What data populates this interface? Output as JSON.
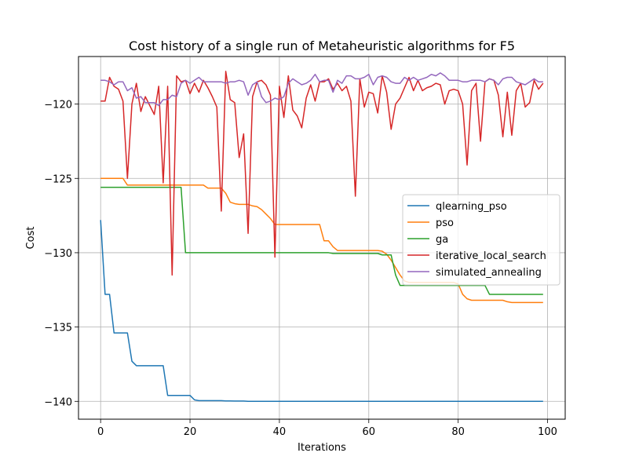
{
  "chart_data": {
    "type": "line",
    "title": "Cost history of a single run of Metaheuristic algorithms for F5",
    "xlabel": "Iterations",
    "ylabel": "Cost",
    "xlim": [
      -4.95,
      103.95
    ],
    "ylim": [
      -141.2,
      -116.8
    ],
    "xticks": [
      0,
      20,
      40,
      60,
      80,
      100
    ],
    "yticks": [
      -140,
      -135,
      -130,
      -125,
      -120
    ],
    "grid": true,
    "legend_position": "center-right",
    "series": [
      {
        "name": "qlearning_pso",
        "color": "#1f77b4",
        "x": [
          0,
          1,
          2,
          3,
          4,
          5,
          6,
          7,
          8,
          9,
          10,
          11,
          12,
          13,
          14,
          15,
          16,
          17,
          18,
          19,
          20,
          21,
          22,
          23,
          24,
          25,
          26,
          27,
          28,
          29,
          30,
          31,
          32,
          33,
          34,
          35,
          36,
          37,
          38,
          39,
          40,
          41,
          42,
          43,
          44,
          45,
          46,
          47,
          48,
          49,
          50,
          51,
          52,
          53,
          54,
          55,
          56,
          57,
          58,
          59,
          60,
          61,
          62,
          63,
          64,
          65,
          66,
          67,
          68,
          69,
          70,
          71,
          72,
          73,
          74,
          75,
          76,
          77,
          78,
          79,
          80,
          81,
          82,
          83,
          84,
          85,
          86,
          87,
          88,
          89,
          90,
          91,
          92,
          93,
          94,
          95,
          96,
          97,
          98,
          99
        ],
        "y": [
          -127.8,
          -132.8,
          -132.8,
          -135.4,
          -135.4,
          -135.4,
          -135.4,
          -137.3,
          -137.6,
          -137.6,
          -137.6,
          -137.6,
          -137.6,
          -137.6,
          -137.6,
          -139.6,
          -139.6,
          -139.6,
          -139.6,
          -139.6,
          -139.6,
          -139.9,
          -139.95,
          -139.95,
          -139.95,
          -139.95,
          -139.95,
          -139.95,
          -139.97,
          -139.97,
          -139.98,
          -139.98,
          -139.98,
          -140,
          -140,
          -140,
          -140,
          -140,
          -140,
          -140,
          -140,
          -140,
          -140,
          -140,
          -140,
          -140,
          -140,
          -140,
          -140,
          -140,
          -140,
          -140,
          -140,
          -140,
          -140,
          -140,
          -140,
          -140,
          -140,
          -140,
          -140,
          -140,
          -140,
          -140,
          -140,
          -140,
          -140,
          -140,
          -140,
          -140,
          -140,
          -140,
          -140,
          -140,
          -140,
          -140,
          -140,
          -140,
          -140,
          -140,
          -140,
          -140,
          -140,
          -140,
          -140,
          -140,
          -140,
          -140,
          -140,
          -140,
          -140,
          -140,
          -140,
          -140,
          -140,
          -140,
          -140,
          -140,
          -140,
          -140
        ]
      },
      {
        "name": "pso",
        "color": "#ff7f0e",
        "x": [
          0,
          1,
          2,
          3,
          4,
          5,
          6,
          7,
          8,
          9,
          10,
          11,
          12,
          13,
          14,
          15,
          16,
          17,
          18,
          19,
          20,
          21,
          22,
          23,
          24,
          25,
          26,
          27,
          28,
          29,
          30,
          31,
          32,
          33,
          34,
          35,
          36,
          37,
          38,
          39,
          40,
          41,
          42,
          43,
          44,
          45,
          46,
          47,
          48,
          49,
          50,
          51,
          52,
          53,
          54,
          55,
          56,
          57,
          58,
          59,
          60,
          61,
          62,
          63,
          64,
          65,
          66,
          67,
          68,
          69,
          70,
          71,
          72,
          73,
          74,
          75,
          76,
          77,
          78,
          79,
          80,
          81,
          82,
          83,
          84,
          85,
          86,
          87,
          88,
          89,
          90,
          91,
          92,
          93,
          94,
          95,
          96,
          97,
          98,
          99
        ],
        "y": [
          -125,
          -125,
          -125,
          -125,
          -125,
          -125,
          -125.45,
          -125.45,
          -125.45,
          -125.45,
          -125.45,
          -125.45,
          -125.45,
          -125.45,
          -125.45,
          -125.45,
          -125.45,
          -125.45,
          -125.45,
          -125.45,
          -125.45,
          -125.45,
          -125.45,
          -125.45,
          -125.65,
          -125.65,
          -125.65,
          -125.65,
          -126,
          -126.6,
          -126.7,
          -126.75,
          -126.75,
          -126.75,
          -126.85,
          -126.9,
          -127.1,
          -127.4,
          -127.7,
          -128.1,
          -128.1,
          -128.1,
          -128.1,
          -128.1,
          -128.1,
          -128.1,
          -128.1,
          -128.1,
          -128.1,
          -128.1,
          -129.2,
          -129.2,
          -129.6,
          -129.85,
          -129.85,
          -129.85,
          -129.85,
          -129.85,
          -129.85,
          -129.85,
          -129.85,
          -129.85,
          -129.85,
          -129.9,
          -130.1,
          -130.5,
          -131,
          -131.5,
          -131.9,
          -132,
          -132,
          -132,
          -132,
          -132,
          -132,
          -132,
          -132,
          -132,
          -132,
          -132,
          -132.1,
          -132.8,
          -133.1,
          -133.2,
          -133.2,
          -133.2,
          -133.2,
          -133.2,
          -133.2,
          -133.2,
          -133.2,
          -133.3,
          -133.35,
          -133.35,
          -133.35,
          -133.35,
          -133.35,
          -133.35,
          -133.35,
          -133.35
        ]
      },
      {
        "name": "ga",
        "color": "#2ca02c",
        "x": [
          0,
          1,
          2,
          3,
          4,
          5,
          6,
          7,
          8,
          9,
          10,
          11,
          12,
          13,
          14,
          15,
          16,
          17,
          18,
          19,
          20,
          21,
          22,
          23,
          24,
          25,
          26,
          27,
          28,
          29,
          30,
          31,
          32,
          33,
          34,
          35,
          36,
          37,
          38,
          39,
          40,
          41,
          42,
          43,
          44,
          45,
          46,
          47,
          48,
          49,
          50,
          51,
          52,
          53,
          54,
          55,
          56,
          57,
          58,
          59,
          60,
          61,
          62,
          63,
          64,
          65,
          66,
          67,
          68,
          69,
          70,
          71,
          72,
          73,
          74,
          75,
          76,
          77,
          78,
          79,
          80,
          81,
          82,
          83,
          84,
          85,
          86,
          87,
          88,
          89,
          90,
          91,
          92,
          93,
          94,
          95,
          96,
          97,
          98,
          99
        ],
        "y": [
          -125.6,
          -125.6,
          -125.6,
          -125.6,
          -125.6,
          -125.6,
          -125.6,
          -125.6,
          -125.6,
          -125.6,
          -125.6,
          -125.6,
          -125.6,
          -125.6,
          -125.6,
          -125.6,
          -125.6,
          -125.6,
          -125.6,
          -130,
          -130,
          -130,
          -130,
          -130,
          -130,
          -130,
          -130,
          -130,
          -130,
          -130,
          -130,
          -130,
          -130,
          -130,
          -130,
          -130,
          -130,
          -130,
          -130,
          -130,
          -130,
          -130,
          -130,
          -130,
          -130,
          -130,
          -130,
          -130,
          -130,
          -130,
          -130,
          -130,
          -130.05,
          -130.05,
          -130.05,
          -130.05,
          -130.05,
          -130.05,
          -130.05,
          -130.05,
          -130.05,
          -130.05,
          -130.05,
          -130.15,
          -130.15,
          -130.15,
          -131.5,
          -132.2,
          -132.2,
          -132.2,
          -132.2,
          -132.2,
          -132.2,
          -132.2,
          -132.2,
          -132.2,
          -132.2,
          -132.2,
          -132.2,
          -132.2,
          -132.2,
          -132.2,
          -132.2,
          -132.2,
          -132.2,
          -132.2,
          -132.2,
          -132.8,
          -132.8,
          -132.8,
          -132.8,
          -132.8,
          -132.8,
          -132.8,
          -132.8,
          -132.8,
          -132.8,
          -132.8,
          -132.8,
          -132.8
        ]
      },
      {
        "name": "iterative_local_search",
        "color": "#d62728",
        "x": [
          0,
          1,
          2,
          3,
          4,
          5,
          6,
          7,
          8,
          9,
          10,
          11,
          12,
          13,
          14,
          15,
          16,
          17,
          18,
          19,
          20,
          21,
          22,
          23,
          24,
          25,
          26,
          27,
          28,
          29,
          30,
          31,
          32,
          33,
          34,
          35,
          36,
          37,
          38,
          39,
          40,
          41,
          42,
          43,
          44,
          45,
          46,
          47,
          48,
          49,
          50,
          51,
          52,
          53,
          54,
          55,
          56,
          57,
          58,
          59,
          60,
          61,
          62,
          63,
          64,
          65,
          66,
          67,
          68,
          69,
          70,
          71,
          72,
          73,
          74,
          75,
          76,
          77,
          78,
          79,
          80,
          81,
          82,
          83,
          84,
          85,
          86,
          87,
          88,
          89,
          90,
          91,
          92,
          93,
          94,
          95,
          96,
          97,
          98,
          99
        ],
        "y": [
          -119.8,
          -119.8,
          -118.2,
          -118.8,
          -119,
          -119.8,
          -125,
          -120,
          -118.6,
          -120.5,
          -119.5,
          -120.1,
          -120.7,
          -118.8,
          -125.3,
          -118.8,
          -131.5,
          -118.1,
          -118.5,
          -118.4,
          -119.3,
          -118.6,
          -119.2,
          -118.4,
          -118.9,
          -119.5,
          -120.2,
          -127.2,
          -117.8,
          -119.7,
          -119.9,
          -123.6,
          -122,
          -128.7,
          -119.5,
          -118.5,
          -118.4,
          -118.7,
          -119.4,
          -130.3,
          -118.8,
          -120.9,
          -118.1,
          -120.4,
          -120.8,
          -121.6,
          -119.6,
          -118.7,
          -119.8,
          -118.5,
          -118.5,
          -118.3,
          -119,
          -118.6,
          -119.1,
          -118.8,
          -119.8,
          -126.2,
          -118.3,
          -120.2,
          -119.2,
          -119.3,
          -120.6,
          -118.1,
          -119.2,
          -121.7,
          -120,
          -119.6,
          -118.9,
          -118.2,
          -119.1,
          -118.4,
          -119.1,
          -118.9,
          -118.8,
          -118.6,
          -118.7,
          -120,
          -119.1,
          -119,
          -119.1,
          -120,
          -124.1,
          -119.1,
          -118.6,
          -122.5,
          -118.5,
          -118.3,
          -118.4,
          -119.4,
          -122.2,
          -119.2,
          -122.1,
          -119.1,
          -118.6,
          -120.2,
          -119.9,
          -118.4,
          -119,
          -118.6
        ]
      },
      {
        "name": "simulated_annealing",
        "color": "#9467bd",
        "x": [
          0,
          1,
          2,
          3,
          4,
          5,
          6,
          7,
          8,
          9,
          10,
          11,
          12,
          13,
          14,
          15,
          16,
          17,
          18,
          19,
          20,
          21,
          22,
          23,
          24,
          25,
          26,
          27,
          28,
          29,
          30,
          31,
          32,
          33,
          34,
          35,
          36,
          37,
          38,
          39,
          40,
          41,
          42,
          43,
          44,
          45,
          46,
          47,
          48,
          49,
          50,
          51,
          52,
          53,
          54,
          55,
          56,
          57,
          58,
          59,
          60,
          61,
          62,
          63,
          64,
          65,
          66,
          67,
          68,
          69,
          70,
          71,
          72,
          73,
          74,
          75,
          76,
          77,
          78,
          79,
          80,
          81,
          82,
          83,
          84,
          85,
          86,
          87,
          88,
          89,
          90,
          91,
          92,
          93,
          94,
          95,
          96,
          97,
          98,
          99
        ],
        "y": [
          -118.4,
          -118.4,
          -118.5,
          -118.7,
          -118.5,
          -118.5,
          -119.1,
          -118.9,
          -119.6,
          -119.5,
          -119.9,
          -119.9,
          -119.9,
          -120.1,
          -119.7,
          -119.7,
          -119.4,
          -119.5,
          -118.6,
          -118.4,
          -118.6,
          -118.4,
          -118.2,
          -118.5,
          -118.5,
          -118.5,
          -118.5,
          -118.5,
          -118.6,
          -118.5,
          -118.5,
          -118.4,
          -118.5,
          -119.4,
          -118.7,
          -118.5,
          -119.5,
          -119.9,
          -119.8,
          -119.6,
          -119.7,
          -119.5,
          -118.6,
          -118.3,
          -118.5,
          -118.7,
          -118.6,
          -118.4,
          -118.0,
          -118.5,
          -118.4,
          -118.4,
          -119.2,
          -118.4,
          -118.6,
          -118.1,
          -118.1,
          -118.3,
          -118.3,
          -118.2,
          -118.0,
          -118.7,
          -118.2,
          -118.1,
          -118.2,
          -118.5,
          -118.6,
          -118.6,
          -118.2,
          -118.4,
          -118.2,
          -118.4,
          -118.3,
          -118.2,
          -118.0,
          -118.1,
          -117.9,
          -118.1,
          -118.4,
          -118.4,
          -118.4,
          -118.5,
          -118.5,
          -118.4,
          -118.4,
          -118.4,
          -118.5,
          -118.3,
          -118.4,
          -118.7,
          -118.3,
          -118.2,
          -118.2,
          -118.5,
          -118.6,
          -118.7,
          -118.5,
          -118.3,
          -118.5,
          -118.5
        ]
      }
    ]
  }
}
